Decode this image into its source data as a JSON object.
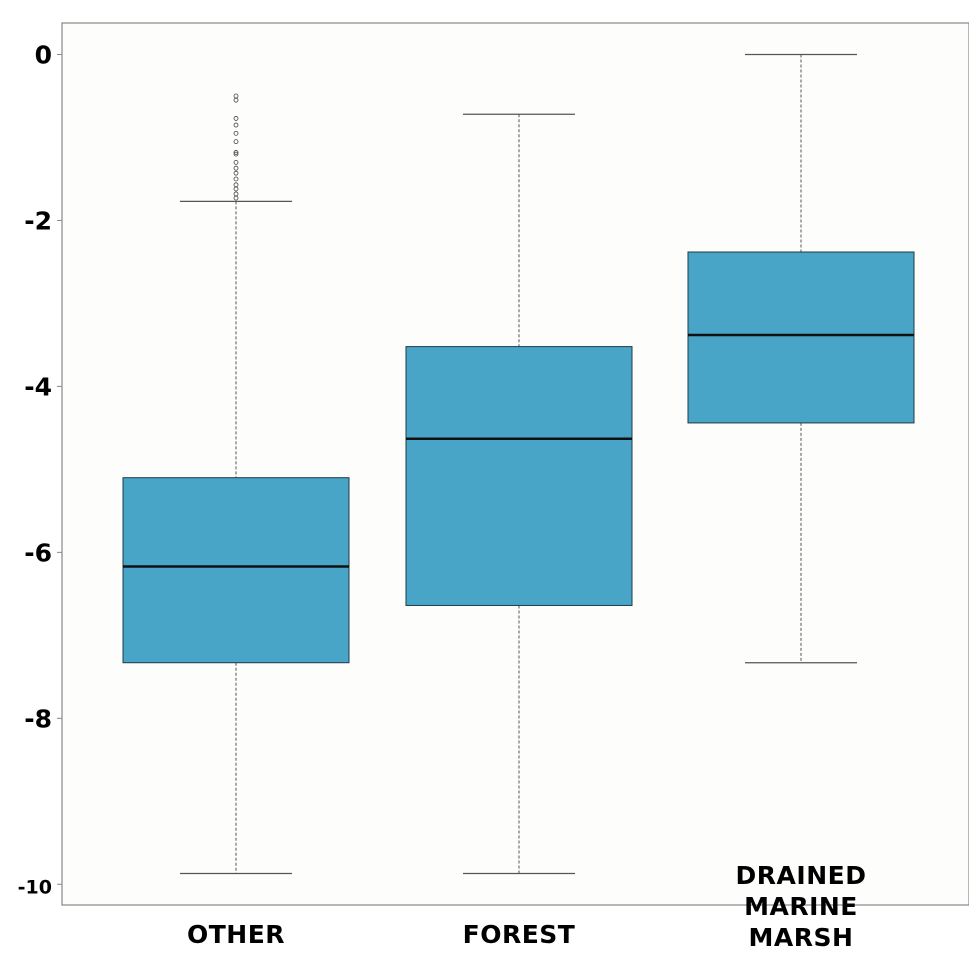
{
  "chart_data": {
    "type": "box",
    "categories": [
      "OTHER",
      "FOREST",
      "DRAINED MARINE MARSH"
    ],
    "category_label_lines": [
      [
        "OTHER"
      ],
      [
        "FOREST"
      ],
      [
        "DRAINED",
        "MARINE",
        "MARSH"
      ]
    ],
    "boxes": [
      {
        "name": "OTHER",
        "whisker_low": -9.87,
        "q1": -7.33,
        "median": -6.17,
        "q3": -5.1,
        "whisker_high": -1.77,
        "outliers": [
          -0.5,
          -0.55,
          -0.77,
          -0.85,
          -0.95,
          -1.05,
          -1.18,
          -1.2,
          -1.3,
          -1.37,
          -1.43,
          -1.5,
          -1.57,
          -1.62,
          -1.68,
          -1.73
        ]
      },
      {
        "name": "FOREST",
        "whisker_low": -9.87,
        "q1": -6.64,
        "median": -4.63,
        "q3": -3.52,
        "whisker_high": -0.72,
        "outliers": []
      },
      {
        "name": "DRAINED MARINE MARSH",
        "whisker_low": -7.33,
        "q1": -4.44,
        "median": -3.38,
        "q3": -2.38,
        "whisker_high": 0.0,
        "outliers": []
      }
    ],
    "yticks": [
      0,
      -2,
      -4,
      -6,
      -8,
      -10
    ],
    "ytick_labels": [
      "0",
      "-2",
      "-4",
      "-6",
      "-8",
      "-10"
    ],
    "ylim": [
      -10.25,
      0.38
    ],
    "grid": false,
    "legend": "none",
    "xlabel": "",
    "ylabel": "",
    "title": "",
    "colors": {
      "box_fill": "#48a5c8",
      "box_edge": "#1e3a4a",
      "median": "#111111",
      "whisker": "#555555",
      "axis": "#888888",
      "plot_bg": "#fdfdfb"
    }
  }
}
